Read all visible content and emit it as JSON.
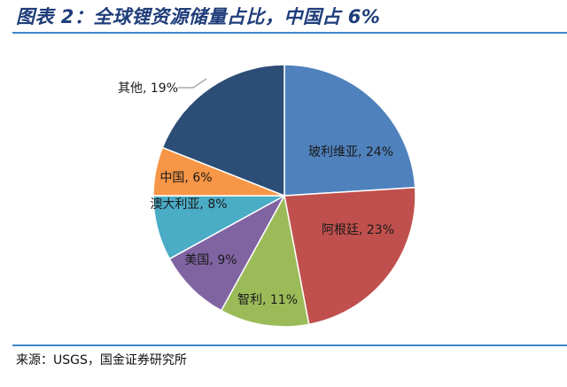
{
  "header": {
    "title": "图表 2：全球锂资源储量占比，中国占 6%"
  },
  "footer": {
    "source": "来源：USGS，国金证券研究所"
  },
  "chart_data": {
    "type": "pie",
    "title": "",
    "start_angle_deg": 0,
    "direction": "clockwise",
    "slices": [
      {
        "label": "玻利维亚, 24%",
        "value": 24,
        "color": "#4f81bd"
      },
      {
        "label": "阿根廷, 23%",
        "value": 23,
        "color": "#c0504d"
      },
      {
        "label": "智利, 11%",
        "value": 11,
        "color": "#9bbb59"
      },
      {
        "label": "美国, 9%",
        "value": 9,
        "color": "#8064a2"
      },
      {
        "label": "澳大利亚, 8%",
        "value": 8,
        "color": "#4bacc6"
      },
      {
        "label": "中国, 6%",
        "value": 6,
        "color": "#f79646"
      },
      {
        "label": "其他, 19%",
        "value": 19,
        "color": "#2c4d75"
      }
    ]
  }
}
